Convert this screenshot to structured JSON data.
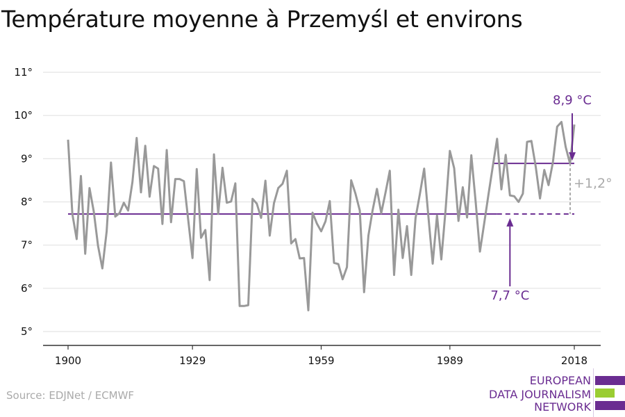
{
  "title": "Température moyenne à Przemyśl et environs",
  "source": "Source: EDJNet / ECMWF",
  "logo": {
    "lines": [
      "EUROPEAN",
      "DATA JOURNALISM",
      "NETWORK"
    ]
  },
  "colors": {
    "series": "#999999",
    "accent": "#6a2c91",
    "logo_green": "#9acd32",
    "grid": "#e3e3e3",
    "axis": "#333333"
  },
  "chart_data": {
    "type": "line",
    "x": [
      1900,
      1901,
      1902,
      1903,
      1904,
      1905,
      1906,
      1907,
      1908,
      1909,
      1910,
      1911,
      1912,
      1913,
      1914,
      1915,
      1916,
      1917,
      1918,
      1919,
      1920,
      1921,
      1922,
      1923,
      1924,
      1925,
      1926,
      1927,
      1928,
      1929,
      1930,
      1931,
      1932,
      1933,
      1934,
      1935,
      1936,
      1937,
      1938,
      1939,
      1940,
      1941,
      1942,
      1943,
      1944,
      1945,
      1946,
      1947,
      1948,
      1949,
      1950,
      1951,
      1952,
      1953,
      1954,
      1955,
      1956,
      1957,
      1958,
      1959,
      1960,
      1961,
      1962,
      1963,
      1964,
      1965,
      1966,
      1967,
      1968,
      1969,
      1970,
      1971,
      1972,
      1973,
      1974,
      1975,
      1976,
      1977,
      1978,
      1979,
      1980,
      1981,
      1982,
      1983,
      1984,
      1985,
      1986,
      1987,
      1988,
      1989,
      1990,
      1991,
      1992,
      1993,
      1994,
      1995,
      1996,
      1997,
      1998,
      1999,
      2000,
      2001,
      2002,
      2003,
      2004,
      2005,
      2006,
      2007,
      2008,
      2009,
      2010,
      2011,
      2012,
      2013,
      2014,
      2015,
      2016,
      2017,
      2018
    ],
    "values": [
      9.44,
      7.72,
      7.14,
      8.6,
      6.8,
      8.32,
      7.77,
      6.98,
      6.46,
      7.32,
      8.91,
      7.66,
      7.74,
      7.98,
      7.8,
      8.46,
      9.48,
      8.22,
      9.3,
      8.12,
      8.83,
      8.77,
      7.49,
      9.2,
      7.53,
      8.53,
      8.53,
      8.48,
      7.59,
      6.7,
      8.76,
      7.17,
      7.35,
      6.19,
      9.1,
      7.72,
      8.79,
      7.98,
      8.01,
      8.43,
      5.59,
      5.59,
      5.61,
      8.07,
      7.96,
      7.63,
      8.49,
      7.22,
      7.97,
      8.32,
      8.42,
      8.72,
      7.04,
      7.14,
      6.69,
      6.7,
      5.49,
      7.75,
      7.5,
      7.32,
      7.55,
      8.02,
      6.59,
      6.56,
      6.21,
      6.49,
      8.5,
      8.19,
      7.8,
      5.91,
      7.22,
      7.81,
      8.3,
      7.74,
      8.22,
      8.72,
      6.31,
      7.82,
      6.7,
      7.44,
      6.31,
      7.63,
      8.18,
      8.77,
      7.66,
      6.57,
      7.69,
      6.67,
      7.83,
      9.18,
      8.78,
      7.56,
      8.34,
      7.64,
      9.08,
      8.01,
      6.85,
      7.51,
      8.17,
      8.82,
      9.46,
      8.29,
      9.09,
      8.15,
      8.13,
      8.0,
      8.19,
      9.39,
      9.41,
      8.82,
      8.08,
      8.74,
      8.39,
      8.91,
      9.74,
      9.85,
      9.27,
      8.89,
      9.79
    ],
    "ylim": [
      5,
      11
    ],
    "xlim": [
      1900,
      2018
    ],
    "xticks": [
      1900,
      1929,
      1959,
      1989,
      2018
    ],
    "xtick_labels": [
      "1900",
      "1929",
      "1959",
      "1989",
      "2018"
    ],
    "yticks": [
      5,
      6,
      7,
      8,
      9,
      10,
      11
    ],
    "ytick_labels": [
      "5°",
      "6°",
      "7°",
      "8°",
      "9°",
      "10°",
      "11°"
    ],
    "grid": true,
    "reference_lines": [
      {
        "label": "7,7 °C",
        "value": 7.72,
        "solid_from": 1900,
        "solid_to": 2000,
        "dashed_to": 2018
      },
      {
        "label": "8,9 °C",
        "value": 8.89,
        "solid_from": 2000,
        "solid_to": 2018
      }
    ],
    "difference_label": "+1,2°"
  }
}
